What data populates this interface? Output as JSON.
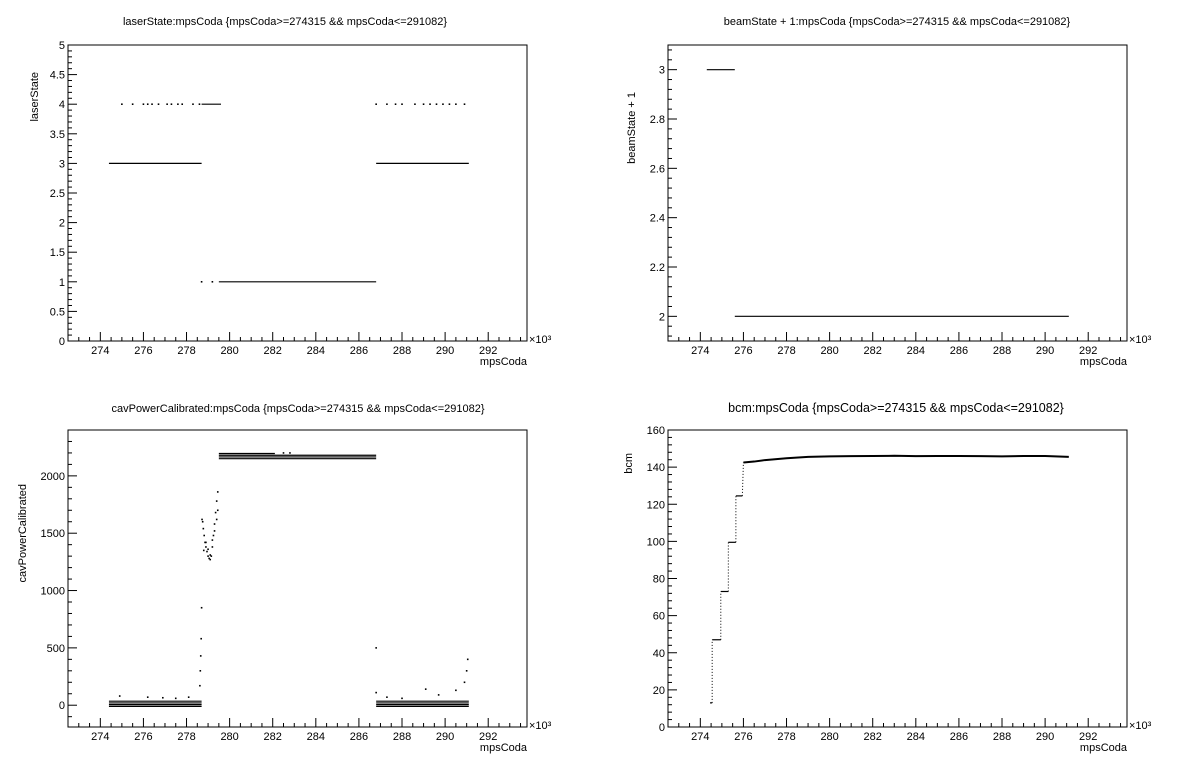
{
  "chart_data": [
    {
      "type": "scatter",
      "title": "laserState:mpsCoda {mpsCoda>=274315 && mpsCoda<=291082}",
      "xlabel": "mpsCoda",
      "ylabel": "laserState",
      "x_multiplier": "×10³",
      "xlim": [
        272.5,
        293.8
      ],
      "ylim": [
        0,
        5
      ],
      "x_ticks": [
        274,
        276,
        278,
        280,
        282,
        284,
        286,
        288,
        290,
        292
      ],
      "y_ticks": [
        0,
        0.5,
        1,
        1.5,
        2,
        2.5,
        3,
        3.5,
        4,
        4.5,
        5
      ],
      "y_tick_labels": [
        "0",
        "0.5",
        "1",
        "1.5",
        "2",
        "2.5",
        "3",
        "3.5",
        "4",
        "4.5",
        "5"
      ],
      "segments": [
        {
          "x": [
            274.4,
            278.7
          ],
          "y": 3
        },
        {
          "x": [
            278.7,
            279.6
          ],
          "y": 4
        },
        {
          "x": [
            279.5,
            286.8
          ],
          "y": 1
        },
        {
          "x": [
            286.8,
            291.1
          ],
          "y": 3
        }
      ],
      "points": [
        {
          "x": 275.0,
          "y": 4
        },
        {
          "x": 275.5,
          "y": 4
        },
        {
          "x": 276.0,
          "y": 4
        },
        {
          "x": 276.2,
          "y": 4
        },
        {
          "x": 276.4,
          "y": 4
        },
        {
          "x": 276.7,
          "y": 4
        },
        {
          "x": 277.1,
          "y": 4
        },
        {
          "x": 277.3,
          "y": 4
        },
        {
          "x": 277.6,
          "y": 4
        },
        {
          "x": 277.8,
          "y": 4
        },
        {
          "x": 278.3,
          "y": 4
        },
        {
          "x": 278.6,
          "y": 4
        },
        {
          "x": 278.7,
          "y": 1
        },
        {
          "x": 279.2,
          "y": 1
        },
        {
          "x": 286.8,
          "y": 4
        },
        {
          "x": 287.3,
          "y": 4
        },
        {
          "x": 287.7,
          "y": 4
        },
        {
          "x": 288.0,
          "y": 4
        },
        {
          "x": 288.6,
          "y": 4
        },
        {
          "x": 289.0,
          "y": 4
        },
        {
          "x": 289.3,
          "y": 4
        },
        {
          "x": 289.6,
          "y": 4
        },
        {
          "x": 289.9,
          "y": 4
        },
        {
          "x": 290.2,
          "y": 4
        },
        {
          "x": 290.5,
          "y": 4
        },
        {
          "x": 290.9,
          "y": 4
        }
      ],
      "grid": false
    },
    {
      "type": "scatter",
      "title": "beamState + 1:mpsCoda {mpsCoda>=274315 && mpsCoda<=291082}",
      "xlabel": "mpsCoda",
      "ylabel": "beamState + 1",
      "x_multiplier": "×10³",
      "xlim": [
        272.5,
        293.8
      ],
      "ylim": [
        1.9,
        3.1
      ],
      "x_ticks": [
        274,
        276,
        278,
        280,
        282,
        284,
        286,
        288,
        290,
        292
      ],
      "y_ticks": [
        2,
        2.2,
        2.4,
        2.6,
        2.8,
        3
      ],
      "y_tick_labels": [
        "2",
        "2.2",
        "2.4",
        "2.6",
        "2.8",
        "3"
      ],
      "segments": [
        {
          "x": [
            274.3,
            275.6
          ],
          "y": 3
        },
        {
          "x": [
            275.6,
            291.1
          ],
          "y": 2
        }
      ],
      "points": [],
      "grid": false
    },
    {
      "type": "scatter",
      "title": "cavPowerCalibrated:mpsCoda {mpsCoda>=274315 && mpsCoda<=291082}",
      "xlabel": "mpsCoda",
      "ylabel": "cavPowerCalibrated",
      "x_multiplier": "×10³",
      "xlim": [
        272.5,
        293.8
      ],
      "ylim": [
        -190,
        2400
      ],
      "x_ticks": [
        274,
        276,
        278,
        280,
        282,
        284,
        286,
        288,
        290,
        292
      ],
      "y_ticks": [
        0,
        500,
        1000,
        1500,
        2000
      ],
      "y_tick_labels": [
        "0",
        "500",
        "1000",
        "1500",
        "2000"
      ],
      "segments": [
        {
          "x": [
            274.4,
            278.7
          ],
          "y": -10
        },
        {
          "x": [
            274.4,
            278.7
          ],
          "y": 5
        },
        {
          "x": [
            274.4,
            278.7
          ],
          "y": 20
        },
        {
          "x": [
            274.4,
            278.7
          ],
          "y": 35
        },
        {
          "x": [
            279.5,
            286.8
          ],
          "y": 2150
        },
        {
          "x": [
            279.5,
            286.8
          ],
          "y": 2165
        },
        {
          "x": [
            279.5,
            286.8
          ],
          "y": 2180
        },
        {
          "x": [
            279.5,
            282.1
          ],
          "y": 2195
        },
        {
          "x": [
            286.8,
            291.1
          ],
          "y": -10
        },
        {
          "x": [
            286.8,
            291.1
          ],
          "y": 5
        },
        {
          "x": [
            286.8,
            291.1
          ],
          "y": 20
        },
        {
          "x": [
            286.8,
            291.1
          ],
          "y": 35
        }
      ],
      "points": [
        {
          "x": 274.9,
          "y": 80
        },
        {
          "x": 276.2,
          "y": 70
        },
        {
          "x": 276.9,
          "y": 65
        },
        {
          "x": 277.5,
          "y": 60
        },
        {
          "x": 278.1,
          "y": 70
        },
        {
          "x": 278.62,
          "y": 170
        },
        {
          "x": 278.64,
          "y": 300
        },
        {
          "x": 278.66,
          "y": 430
        },
        {
          "x": 278.68,
          "y": 580
        },
        {
          "x": 278.7,
          "y": 850
        },
        {
          "x": 278.72,
          "y": 1620
        },
        {
          "x": 278.75,
          "y": 1600
        },
        {
          "x": 278.78,
          "y": 1540
        },
        {
          "x": 278.82,
          "y": 1480
        },
        {
          "x": 278.86,
          "y": 1420
        },
        {
          "x": 278.9,
          "y": 1380
        },
        {
          "x": 278.95,
          "y": 1340
        },
        {
          "x": 279.0,
          "y": 1300
        },
        {
          "x": 279.05,
          "y": 1280
        },
        {
          "x": 279.1,
          "y": 1270
        },
        {
          "x": 279.15,
          "y": 1300
        },
        {
          "x": 279.2,
          "y": 1380
        },
        {
          "x": 279.25,
          "y": 1480
        },
        {
          "x": 279.3,
          "y": 1580
        },
        {
          "x": 279.35,
          "y": 1680
        },
        {
          "x": 279.4,
          "y": 1780
        },
        {
          "x": 279.45,
          "y": 1860
        },
        {
          "x": 278.8,
          "y": 1350
        },
        {
          "x": 278.9,
          "y": 1420
        },
        {
          "x": 279.0,
          "y": 1360
        },
        {
          "x": 279.1,
          "y": 1310
        },
        {
          "x": 279.2,
          "y": 1440
        },
        {
          "x": 279.3,
          "y": 1520
        },
        {
          "x": 279.4,
          "y": 1620
        },
        {
          "x": 279.45,
          "y": 1700
        },
        {
          "x": 282.5,
          "y": 2200
        },
        {
          "x": 282.8,
          "y": 2200
        },
        {
          "x": 286.8,
          "y": 500
        },
        {
          "x": 286.8,
          "y": 110
        },
        {
          "x": 287.3,
          "y": 70
        },
        {
          "x": 288.0,
          "y": 60
        },
        {
          "x": 289.1,
          "y": 140
        },
        {
          "x": 289.7,
          "y": 90
        },
        {
          "x": 290.5,
          "y": 130
        },
        {
          "x": 290.9,
          "y": 200
        },
        {
          "x": 291.0,
          "y": 300
        },
        {
          "x": 291.05,
          "y": 400
        }
      ],
      "grid": false
    },
    {
      "type": "scatter",
      "title": "bcm:mpsCoda {mpsCoda>=274315 && mpsCoda<=291082}",
      "xlabel": "mpsCoda",
      "ylabel": "bcm",
      "x_multiplier": "×10³",
      "xlim": [
        272.5,
        293.8
      ],
      "ylim": [
        0,
        160
      ],
      "x_ticks": [
        274,
        276,
        278,
        280,
        282,
        284,
        286,
        288,
        290,
        292
      ],
      "y_ticks": [
        0,
        20,
        40,
        60,
        80,
        100,
        120,
        140,
        160
      ],
      "y_tick_labels": [
        "0",
        "20",
        "40",
        "60",
        "80",
        "100",
        "120",
        "140",
        "160"
      ],
      "segments": [
        {
          "x": [
            274.45,
            274.55
          ],
          "y": 13
        },
        {
          "x": [
            274.55,
            274.95
          ],
          "y": 47
        },
        {
          "x": [
            274.95,
            275.3
          ],
          "y": 73
        },
        {
          "x": [
            275.3,
            275.65
          ],
          "y": 99.5
        },
        {
          "x": [
            275.65,
            275.95
          ],
          "y": 124.5
        }
      ],
      "trend": {
        "x": [
          276.0,
          276.5,
          277.0,
          278.0,
          279.0,
          280.0,
          281.0,
          282.0,
          283.0,
          284.0,
          285.0,
          286.0,
          287.0,
          288.0,
          289.0,
          290.0,
          291.1
        ],
        "y": [
          142.5,
          143.0,
          143.8,
          144.8,
          145.5,
          145.8,
          145.9,
          146.0,
          146.1,
          145.9,
          146.0,
          146.0,
          145.9,
          145.8,
          146.0,
          146.0,
          145.5
        ]
      },
      "grid": false
    }
  ]
}
